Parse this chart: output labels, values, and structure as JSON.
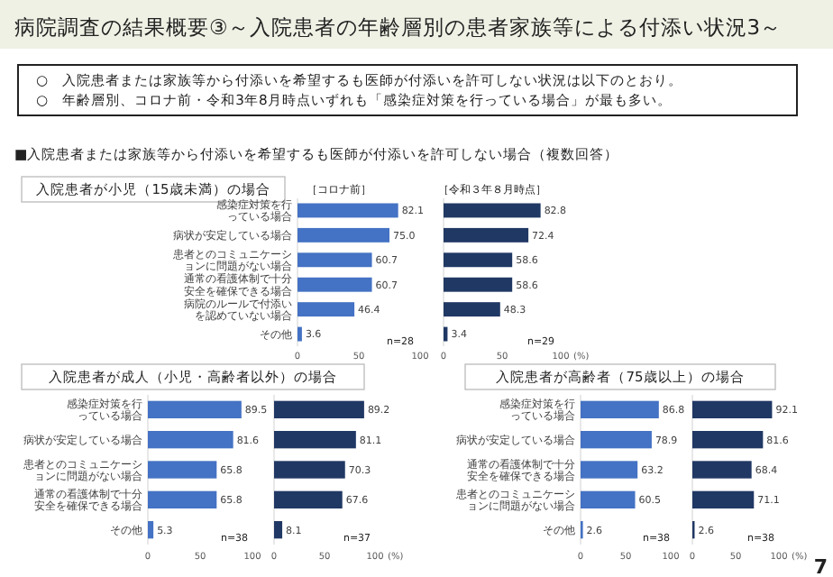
{
  "chart_data": [
    {
      "type": "bar",
      "orientation": "horizontal",
      "title": "入院患者が小児（15歳未満）の場合",
      "subtitle": "［コロナ前］",
      "categories": [
        "感染症対策を行っている場合",
        "病状が安定している場合",
        "患者とのコミュニケーションに問題がない場合",
        "通常の看護体制で十分安全を確保できる場合",
        "病院のルールで付添いを認めていない場合",
        "その他"
      ],
      "values": [
        82.1,
        75.0,
        60.7,
        60.7,
        46.4,
        3.6
      ],
      "value_labels": [
        "82.1",
        "75.0",
        "60.7",
        "60.7",
        "46.4",
        "3.6"
      ],
      "color": "#4472c4",
      "xlim": [
        0,
        100
      ],
      "xticks": [
        0,
        50,
        100
      ],
      "annotations": [
        "病院調査の結果概要③～入院患者の年齢層別の患者家族等による付添い状況3～",
        "○　入院患者または家族等から付添いを希望するも医師が付添いを許可しない状況は以下のとおり。",
        "○　年齢層別、コロナ前・令和3年8月時点いずれも「感染症対策を行っている場合」が最も多い。",
        "■入院患者または家族等から付添いを希望するも医師が付添いを許可しない場合（複数回答）",
        "n=28"
      ]
    },
    {
      "type": "bar",
      "orientation": "horizontal",
      "subtitle": "［令和３年８月時点］",
      "xlabel": "(%)",
      "categories": [
        "感染症対策を行っている場合",
        "病状が安定している場合",
        "患者とのコミュニケーションに問題がない場合",
        "通常の看護体制で十分安全を確保できる場合",
        "病院のルールで付添いを認めていない場合",
        "その他"
      ],
      "values": [
        82.8,
        72.4,
        58.6,
        58.6,
        48.3,
        3.4
      ],
      "value_labels": [
        "82.8",
        "72.4",
        "58.6",
        "58.6",
        "48.3",
        "3.4"
      ],
      "color": "#203864",
      "xlim": [
        0,
        100
      ],
      "xticks": [
        0,
        50,
        100
      ],
      "tick_labels": "x",
      "annotations": [
        "n=29"
      ]
    },
    {
      "type": "bar",
      "orientation": "horizontal",
      "title": "入院患者が成人（小児・高齢者以外）の場合",
      "categories": [
        "感染症対策を行っている場合",
        "病状が安定している場合",
        "患者とのコミュニケーションに問題がない場合",
        "通常の看護体制で十分安全を確保できる場合",
        "その他"
      ],
      "values": [
        89.5,
        81.6,
        65.8,
        65.8,
        5.3
      ],
      "value_labels": [
        "89.5",
        "81.6",
        "65.8",
        "65.8",
        "5.3"
      ],
      "color": "#4472c4",
      "xlim": [
        0,
        100
      ],
      "xticks": [
        0,
        50,
        100
      ],
      "annotations": [
        "n=38"
      ]
    },
    {
      "type": "bar",
      "orientation": "horizontal",
      "xlabel": "(%)",
      "categories": [
        "感染症対策を行っている場合",
        "病状が安定している場合",
        "患者とのコミュニケーションに問題がない場合",
        "通常の看護体制で十分安全を確保できる場合",
        "その他"
      ],
      "values": [
        89.2,
        81.1,
        70.3,
        67.6,
        8.1
      ],
      "value_labels": [
        "89.2",
        "81.1",
        "70.3",
        "67.6",
        "8.1"
      ],
      "color": "#203864",
      "xlim": [
        0,
        100
      ],
      "xticks": [
        0,
        50,
        100
      ],
      "tick_labels": "x",
      "annotations": [
        "n=37"
      ]
    },
    {
      "type": "bar",
      "orientation": "horizontal",
      "title": "入院患者が高齢者（75歳以上）の場合",
      "categories": [
        "感染症対策を行っている場合",
        "病状が安定している場合",
        "通常の看護体制で十分安全を確保できる場合",
        "患者とのコミュニケーションに問題がない場合",
        "その他"
      ],
      "values": [
        86.8,
        78.9,
        63.2,
        60.5,
        2.6
      ],
      "value_labels": [
        "86.8",
        "78.9",
        "63.2",
        "60.5",
        "2.6"
      ],
      "color": "#4472c4",
      "xlim": [
        0,
        100
      ],
      "xticks": [
        0,
        50,
        100
      ],
      "annotations": [
        "n=38"
      ]
    },
    {
      "type": "bar",
      "orientation": "horizontal",
      "xlabel": "(%)",
      "categories": [
        "感染症対策を行っている場合",
        "病状が安定している場合",
        "通常の看護体制で十分安全を確保できる場合",
        "患者とのコミュニケーションに問題がない場合",
        "その他"
      ],
      "values": [
        92.1,
        81.6,
        68.4,
        71.1,
        2.6
      ],
      "value_labels": [
        "92.1",
        "81.6",
        "68.4",
        "71.1",
        "2.6"
      ],
      "color": "#203864",
      "xlim": [
        0,
        100
      ],
      "xticks": [
        0,
        50,
        100
      ],
      "tick_labels": "x",
      "annotations": [
        "n=38",
        "7"
      ]
    }
  ]
}
